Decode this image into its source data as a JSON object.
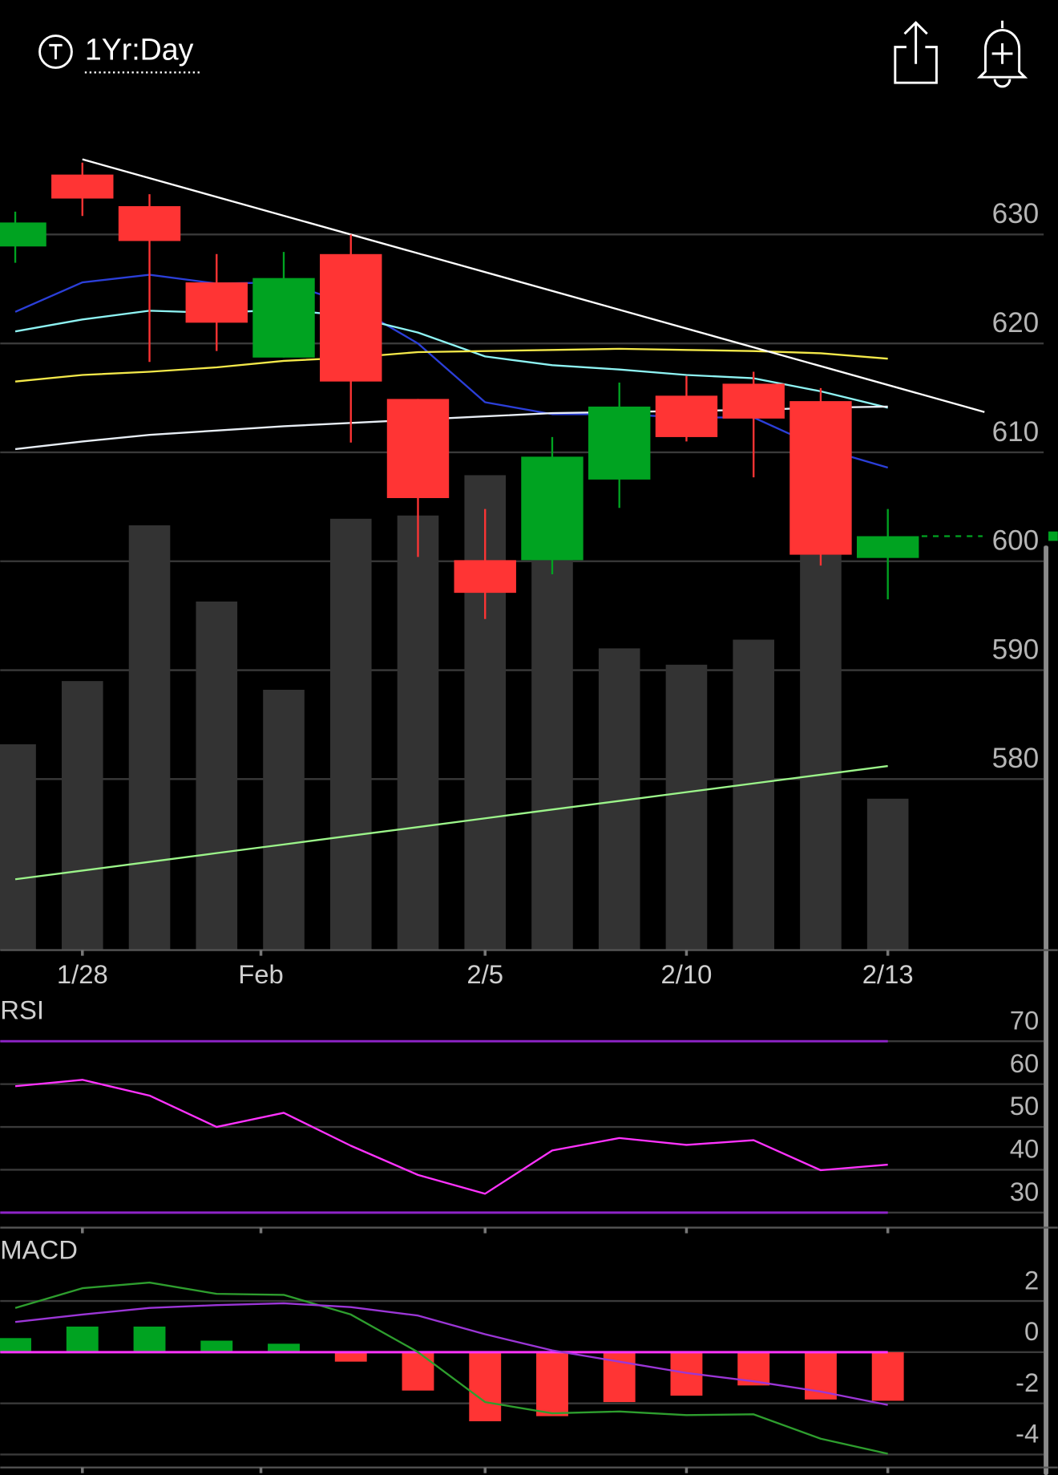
{
  "header": {
    "timeframe": "1Yr:Day"
  },
  "chart_data": [
    {
      "type": "candlestick",
      "categories": [
        null,
        null,
        null,
        null,
        null,
        null,
        null,
        null,
        null,
        null,
        null,
        null,
        null,
        null
      ],
      "open": [
        628.9,
        635.5,
        632.6,
        625.6,
        618.7,
        628.2,
        614.9,
        600.1,
        600.1,
        607.5,
        615.2,
        616.3,
        614.7,
        600.3
      ],
      "high": [
        632.1,
        636.6,
        633.7,
        628.2,
        628.4,
        630.0,
        614.9,
        604.8,
        611.4,
        616.4,
        617.0,
        617.4,
        615.9,
        604.8
      ],
      "low": [
        627.4,
        631.7,
        618.3,
        619.3,
        618.7,
        610.9,
        600.4,
        594.7,
        598.8,
        604.9,
        611.0,
        607.7,
        599.6,
        596.5
      ],
      "close": [
        631.1,
        633.3,
        629.4,
        621.9,
        626.0,
        616.5,
        605.8,
        597.1,
        609.6,
        614.2,
        611.4,
        613.1,
        600.6,
        602.3
      ],
      "up_color": "#00a321",
      "down_color": "#ff3434",
      "volume": {
        "color": "#333333",
        "values": [
          583.2,
          589.0,
          603.3,
          596.3,
          588.2,
          603.9,
          604.2,
          607.9,
          600.2,
          592.0,
          590.5,
          592.8,
          600.6,
          578.2
        ]
      },
      "series": [
        {
          "color": "#2b3fd8",
          "values": [
            622.9,
            625.6,
            626.3,
            625.5,
            625.6,
            623.6,
            620.0,
            614.6,
            613.5,
            613.5,
            613.2,
            613.2,
            610.4,
            608.6
          ]
        },
        {
          "color": "#8ef3f3",
          "values": [
            621.1,
            622.2,
            623.0,
            622.8,
            623.1,
            622.5,
            621.0,
            618.8,
            618.0,
            617.6,
            617.1,
            616.8,
            615.6,
            614.1
          ]
        },
        {
          "color": "#f4e94a",
          "values": [
            616.5,
            617.1,
            617.4,
            617.8,
            618.4,
            618.7,
            619.2,
            619.3,
            619.4,
            619.5,
            619.4,
            619.3,
            619.1,
            618.6
          ]
        },
        {
          "color": "#e8eef5",
          "values": [
            610.3,
            611.0,
            611.6,
            612.0,
            612.4,
            612.7,
            613.0,
            613.3,
            613.6,
            613.7,
            613.8,
            613.9,
            614.1,
            614.2
          ]
        },
        {
          "color": "#9cf58a",
          "values": [
            570.8,
            571.6,
            572.4,
            573.2,
            574.0,
            574.8,
            575.6,
            576.4,
            577.2,
            578.0,
            578.8,
            579.6,
            580.4,
            581.2
          ]
        }
      ],
      "trendline": {
        "color": "#ffffff",
        "x": [
          1,
          14.44
        ],
        "values": [
          636.9,
          613.7
        ]
      },
      "xlim": [
        -0.224,
        15.532
      ],
      "xticks": [
        {
          "value": 1,
          "label": "1/28"
        },
        {
          "value": 3.66,
          "label": "Feb"
        },
        {
          "value": 7,
          "label": "2/5"
        },
        {
          "value": 10,
          "label": "2/10"
        },
        {
          "value": 13,
          "label": "2/13"
        }
      ],
      "ylim": [
        564.3,
        640.3
      ],
      "yticks": [
        580,
        590,
        600,
        610,
        620,
        630
      ],
      "grid": true
    },
    {
      "type": "line",
      "title": "RSI",
      "series": [
        {
          "color": "#ff33ff",
          "values": [
            59.5,
            61.0,
            57.3,
            50.0,
            53.3,
            45.6,
            38.8,
            34.4,
            44.5,
            47.4,
            45.8,
            46.9,
            39.9,
            41.2
          ]
        }
      ],
      "levels": [
        70,
        30
      ],
      "level_color": "#8e24c8",
      "ylim": [
        26.5,
        80.3
      ],
      "yticks": [
        30,
        40,
        50,
        60,
        70
      ],
      "grid": true
    },
    {
      "type": "macd",
      "title": "MACD",
      "histogram": [
        0.55,
        1.0,
        1.0,
        0.45,
        0.33,
        -0.37,
        -1.5,
        -2.7,
        -2.5,
        -1.95,
        -1.7,
        -1.3,
        -1.85,
        -1.9
      ],
      "up_color": "#00a321",
      "down_color": "#ff3434",
      "zero_color": "#ff33ff",
      "series": [
        {
          "color": "#2e9e2e",
          "values": [
            1.73,
            2.5,
            2.72,
            2.28,
            2.24,
            1.47,
            0,
            -1.95,
            -2.39,
            -2.32,
            -2.46,
            -2.43,
            -3.38,
            -3.97
          ]
        },
        {
          "color": "#9b36d6",
          "values": [
            1.18,
            1.47,
            1.73,
            1.84,
            1.91,
            1.76,
            1.43,
            0.7,
            0.07,
            -0.37,
            -0.81,
            -1.14,
            -1.54,
            -2.06
          ]
        }
      ],
      "ylim": [
        -4.8,
        4.5
      ],
      "yticks": [
        -4,
        -2,
        0,
        2
      ],
      "grid": true
    }
  ]
}
